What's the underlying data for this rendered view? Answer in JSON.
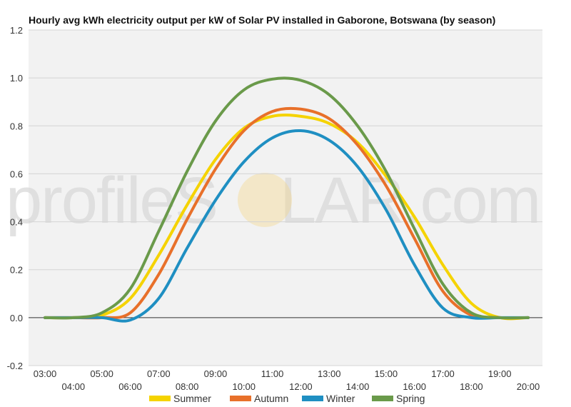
{
  "watermark": {
    "text_before": "profileS",
    "text_after": "LAR.com",
    "sun_color": "#f5d37a"
  },
  "chart_data": {
    "type": "line",
    "title": "Hourly avg kWh electricity output per kW of Solar PV installed in Gaborone, Botswana (by season)",
    "xlabel": "",
    "ylabel": "",
    "ylim": [
      -0.2,
      1.2
    ],
    "yticks": [
      "-0.2",
      "0.0",
      "0.2",
      "0.4",
      "0.6",
      "0.8",
      "1.0",
      "1.2"
    ],
    "x": [
      "03:00",
      "04:00",
      "05:00",
      "06:00",
      "07:00",
      "08:00",
      "09:00",
      "10:00",
      "11:00",
      "12:00",
      "13:00",
      "14:00",
      "15:00",
      "16:00",
      "17:00",
      "18:00",
      "19:00",
      "20:00"
    ],
    "grid": true,
    "legend_position": "bottom",
    "series": [
      {
        "name": "Summer",
        "color": "#f5d300",
        "values": [
          0.0,
          0.0,
          0.01,
          0.08,
          0.26,
          0.47,
          0.66,
          0.79,
          0.84,
          0.84,
          0.81,
          0.73,
          0.59,
          0.42,
          0.22,
          0.06,
          0.0,
          0.0
        ]
      },
      {
        "name": "Autumn",
        "color": "#e8702a",
        "values": [
          0.0,
          0.0,
          0.0,
          0.02,
          0.18,
          0.41,
          0.62,
          0.78,
          0.86,
          0.87,
          0.83,
          0.72,
          0.55,
          0.33,
          0.11,
          0.01,
          0.0,
          0.0
        ]
      },
      {
        "name": "Winter",
        "color": "#1f8fc2",
        "values": [
          0.0,
          0.0,
          0.0,
          -0.01,
          0.08,
          0.29,
          0.49,
          0.65,
          0.75,
          0.78,
          0.74,
          0.63,
          0.45,
          0.22,
          0.04,
          0.0,
          0.0,
          0.0
        ]
      },
      {
        "name": "Spring",
        "color": "#6a9a4a",
        "values": [
          0.0,
          0.0,
          0.02,
          0.12,
          0.36,
          0.61,
          0.82,
          0.95,
          0.995,
          0.99,
          0.93,
          0.8,
          0.61,
          0.37,
          0.14,
          0.02,
          0.0,
          0.0
        ]
      }
    ]
  }
}
